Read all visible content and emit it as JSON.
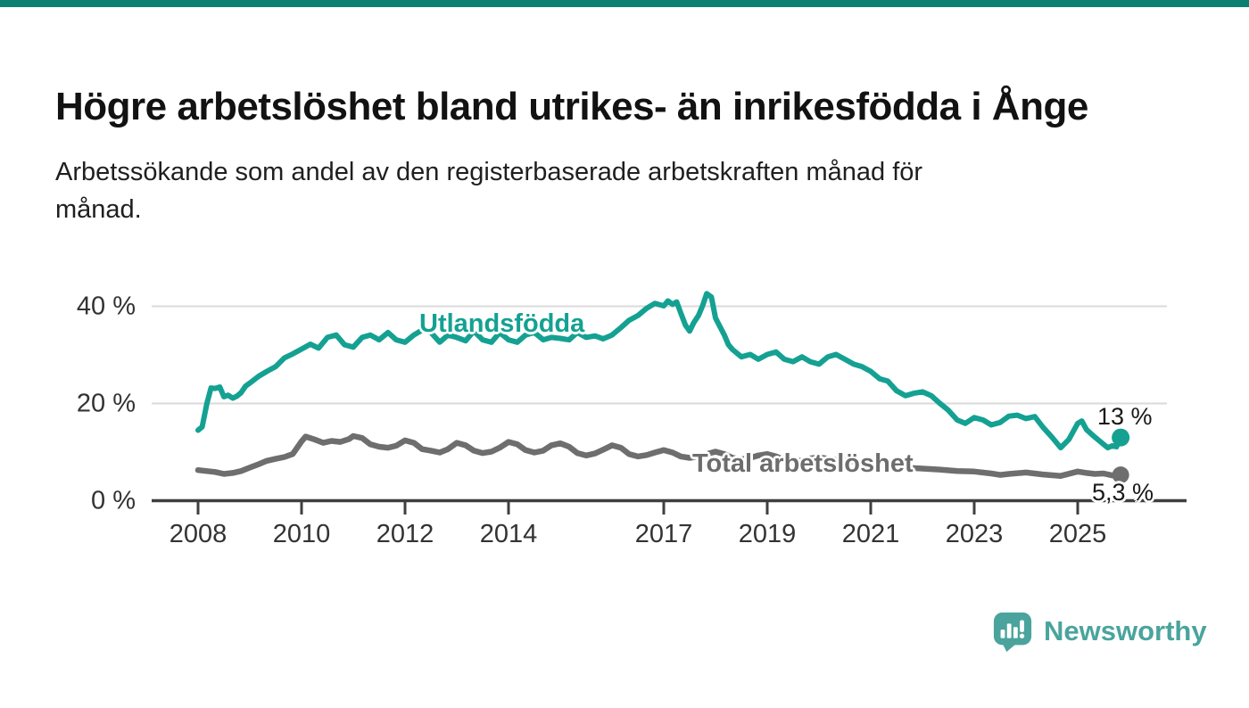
{
  "meta": {
    "top_bar_color": "#0b8071",
    "background_color": "#ffffff"
  },
  "header": {
    "title": "Högre arbetslöshet bland utrikes- än inrikesfödda i Ånge",
    "subtitle_line1": "Arbetssökande som andel av den registerbaserade arbetskraften månad för",
    "subtitle_line2": "månad."
  },
  "chart_data": {
    "type": "line",
    "title": "Högre arbetslöshet bland utrikes- än inrikesfödda i Ånge",
    "subtitle": "Arbetssökande som andel av den registerbaserade arbetskraften månad för månad.",
    "unit": "percent",
    "x_axis": {
      "range": [
        2008,
        2026
      ],
      "tick_years": [
        2008,
        2010,
        2012,
        2014,
        2017,
        2019,
        2021,
        2023,
        2025
      ]
    },
    "y_axis": {
      "range": [
        0,
        45
      ],
      "ticks": [
        {
          "value": 0,
          "label": "0 %"
        },
        {
          "value": 20,
          "label": "20 %"
        },
        {
          "value": 40,
          "label": "40 %"
        }
      ],
      "gridline_values": [
        20,
        40
      ]
    },
    "grid": "horizontal-only",
    "legend_position": "inline-labels-on-lines",
    "axis_color": "#3f3f3f",
    "gridline_color": "#dadada",
    "series": [
      {
        "name": "Utlandsfödda",
        "color": "#14a192",
        "end_label": "13 %",
        "end_value": 13,
        "points": [
          [
            2008.0,
            14.5
          ],
          [
            2008.08,
            15.2
          ],
          [
            2008.17,
            20.0
          ],
          [
            2008.25,
            23.2
          ],
          [
            2008.33,
            23.1
          ],
          [
            2008.42,
            23.4
          ],
          [
            2008.5,
            21.4
          ],
          [
            2008.58,
            21.7
          ],
          [
            2008.67,
            21.1
          ],
          [
            2008.75,
            21.5
          ],
          [
            2008.83,
            22.2
          ],
          [
            2008.92,
            23.6
          ],
          [
            2009.0,
            24.2
          ],
          [
            2009.17,
            25.6
          ],
          [
            2009.33,
            26.6
          ],
          [
            2009.5,
            27.6
          ],
          [
            2009.67,
            29.4
          ],
          [
            2009.83,
            30.2
          ],
          [
            2010.0,
            31.2
          ],
          [
            2010.17,
            32.2
          ],
          [
            2010.33,
            31.4
          ],
          [
            2010.5,
            33.6
          ],
          [
            2010.67,
            34.1
          ],
          [
            2010.83,
            32.1
          ],
          [
            2011.0,
            31.6
          ],
          [
            2011.17,
            33.6
          ],
          [
            2011.33,
            34.1
          ],
          [
            2011.5,
            33.1
          ],
          [
            2011.67,
            34.6
          ],
          [
            2011.83,
            33.1
          ],
          [
            2012.0,
            32.6
          ],
          [
            2012.17,
            34.1
          ],
          [
            2012.33,
            35.1
          ],
          [
            2012.5,
            34.6
          ],
          [
            2012.67,
            32.6
          ],
          [
            2012.83,
            34.1
          ],
          [
            2013.0,
            33.6
          ],
          [
            2013.17,
            32.9
          ],
          [
            2013.33,
            34.9
          ],
          [
            2013.5,
            33.1
          ],
          [
            2013.67,
            32.6
          ],
          [
            2013.83,
            34.6
          ],
          [
            2014.0,
            33.1
          ],
          [
            2014.17,
            32.6
          ],
          [
            2014.33,
            34.1
          ],
          [
            2014.5,
            34.6
          ],
          [
            2014.67,
            33.1
          ],
          [
            2014.83,
            33.6
          ],
          [
            2015.0,
            33.4
          ],
          [
            2015.17,
            33.1
          ],
          [
            2015.33,
            34.6
          ],
          [
            2015.5,
            33.6
          ],
          [
            2015.67,
            33.9
          ],
          [
            2015.83,
            33.3
          ],
          [
            2016.0,
            34.1
          ],
          [
            2016.17,
            35.6
          ],
          [
            2016.33,
            37.1
          ],
          [
            2016.5,
            38.1
          ],
          [
            2016.67,
            39.6
          ],
          [
            2016.83,
            40.6
          ],
          [
            2017.0,
            40.1
          ],
          [
            2017.08,
            41.1
          ],
          [
            2017.17,
            40.4
          ],
          [
            2017.25,
            40.9
          ],
          [
            2017.33,
            38.6
          ],
          [
            2017.42,
            36.1
          ],
          [
            2017.5,
            34.9
          ],
          [
            2017.58,
            36.6
          ],
          [
            2017.67,
            38.1
          ],
          [
            2017.75,
            40.1
          ],
          [
            2017.83,
            42.6
          ],
          [
            2017.92,
            41.9
          ],
          [
            2018.0,
            37.6
          ],
          [
            2018.17,
            34.1
          ],
          [
            2018.25,
            32.1
          ],
          [
            2018.33,
            31.1
          ],
          [
            2018.5,
            29.6
          ],
          [
            2018.67,
            30.1
          ],
          [
            2018.83,
            29.1
          ],
          [
            2019.0,
            30.1
          ],
          [
            2019.17,
            30.6
          ],
          [
            2019.33,
            29.1
          ],
          [
            2019.5,
            28.6
          ],
          [
            2019.67,
            29.6
          ],
          [
            2019.83,
            28.6
          ],
          [
            2020.0,
            28.1
          ],
          [
            2020.17,
            29.6
          ],
          [
            2020.33,
            30.1
          ],
          [
            2020.5,
            29.1
          ],
          [
            2020.67,
            28.1
          ],
          [
            2020.83,
            27.6
          ],
          [
            2021.0,
            26.6
          ],
          [
            2021.17,
            25.1
          ],
          [
            2021.33,
            24.6
          ],
          [
            2021.5,
            22.6
          ],
          [
            2021.67,
            21.6
          ],
          [
            2021.83,
            22.1
          ],
          [
            2022.0,
            22.4
          ],
          [
            2022.17,
            21.6
          ],
          [
            2022.33,
            20.1
          ],
          [
            2022.5,
            18.6
          ],
          [
            2022.67,
            16.6
          ],
          [
            2022.83,
            15.9
          ],
          [
            2023.0,
            17.1
          ],
          [
            2023.17,
            16.6
          ],
          [
            2023.33,
            15.6
          ],
          [
            2023.5,
            16.1
          ],
          [
            2023.67,
            17.4
          ],
          [
            2023.83,
            17.6
          ],
          [
            2024.0,
            16.9
          ],
          [
            2024.17,
            17.3
          ],
          [
            2024.33,
            15.1
          ],
          [
            2024.5,
            13.1
          ],
          [
            2024.67,
            10.9
          ],
          [
            2024.83,
            12.6
          ],
          [
            2025.0,
            15.9
          ],
          [
            2025.08,
            16.4
          ],
          [
            2025.17,
            14.6
          ],
          [
            2025.33,
            13.1
          ],
          [
            2025.5,
            11.6
          ],
          [
            2025.58,
            10.9
          ],
          [
            2025.67,
            11.3
          ],
          [
            2025.75,
            11.1
          ],
          [
            2025.83,
            13.0
          ]
        ]
      },
      {
        "name": "Total arbetslöshet",
        "color": "#6e6e6e",
        "end_label": "5,3 %",
        "end_value": 5.3,
        "points": [
          [
            2008.0,
            6.3
          ],
          [
            2008.17,
            6.1
          ],
          [
            2008.33,
            5.9
          ],
          [
            2008.5,
            5.5
          ],
          [
            2008.67,
            5.7
          ],
          [
            2008.83,
            6.1
          ],
          [
            2009.0,
            6.8
          ],
          [
            2009.17,
            7.5
          ],
          [
            2009.33,
            8.2
          ],
          [
            2009.5,
            8.6
          ],
          [
            2009.67,
            9.0
          ],
          [
            2009.83,
            9.6
          ],
          [
            2010.0,
            12.2
          ],
          [
            2010.08,
            13.2
          ],
          [
            2010.25,
            12.6
          ],
          [
            2010.42,
            11.9
          ],
          [
            2010.58,
            12.3
          ],
          [
            2010.75,
            12.1
          ],
          [
            2010.92,
            12.7
          ],
          [
            2011.0,
            13.3
          ],
          [
            2011.17,
            12.9
          ],
          [
            2011.33,
            11.6
          ],
          [
            2011.5,
            11.1
          ],
          [
            2011.67,
            10.9
          ],
          [
            2011.83,
            11.3
          ],
          [
            2012.0,
            12.4
          ],
          [
            2012.17,
            11.9
          ],
          [
            2012.33,
            10.6
          ],
          [
            2012.5,
            10.3
          ],
          [
            2012.67,
            9.9
          ],
          [
            2012.83,
            10.6
          ],
          [
            2013.0,
            11.9
          ],
          [
            2013.17,
            11.4
          ],
          [
            2013.33,
            10.3
          ],
          [
            2013.5,
            9.8
          ],
          [
            2013.67,
            10.1
          ],
          [
            2013.83,
            10.9
          ],
          [
            2014.0,
            12.1
          ],
          [
            2014.17,
            11.6
          ],
          [
            2014.33,
            10.4
          ],
          [
            2014.5,
            9.9
          ],
          [
            2014.67,
            10.3
          ],
          [
            2014.83,
            11.4
          ],
          [
            2015.0,
            11.8
          ],
          [
            2015.17,
            11.1
          ],
          [
            2015.33,
            9.8
          ],
          [
            2015.5,
            9.3
          ],
          [
            2015.67,
            9.7
          ],
          [
            2015.83,
            10.5
          ],
          [
            2016.0,
            11.4
          ],
          [
            2016.17,
            10.9
          ],
          [
            2016.33,
            9.6
          ],
          [
            2016.5,
            9.1
          ],
          [
            2016.67,
            9.4
          ],
          [
            2016.83,
            9.9
          ],
          [
            2017.0,
            10.4
          ],
          [
            2017.17,
            9.9
          ],
          [
            2017.33,
            9.1
          ],
          [
            2017.5,
            8.8
          ],
          [
            2017.67,
            9.1
          ],
          [
            2017.83,
            9.6
          ],
          [
            2018.0,
            10.1
          ],
          [
            2018.17,
            9.6
          ],
          [
            2018.33,
            8.8
          ],
          [
            2018.5,
            8.5
          ],
          [
            2018.67,
            8.8
          ],
          [
            2018.83,
            9.3
          ],
          [
            2019.0,
            9.6
          ],
          [
            2019.17,
            9.1
          ],
          [
            2019.33,
            8.4
          ],
          [
            2019.5,
            8.1
          ],
          [
            2019.67,
            8.3
          ],
          [
            2019.83,
            8.7
          ],
          [
            2020.0,
            8.9
          ],
          [
            2020.33,
            8.4
          ],
          [
            2020.67,
            8.1
          ],
          [
            2021.0,
            7.6
          ],
          [
            2021.33,
            7.1
          ],
          [
            2021.67,
            6.8
          ],
          [
            2022.0,
            6.6
          ],
          [
            2022.33,
            6.4
          ],
          [
            2022.67,
            6.1
          ],
          [
            2023.0,
            6.0
          ],
          [
            2023.33,
            5.6
          ],
          [
            2023.5,
            5.3
          ],
          [
            2023.67,
            5.5
          ],
          [
            2024.0,
            5.8
          ],
          [
            2024.33,
            5.4
          ],
          [
            2024.67,
            5.1
          ],
          [
            2025.0,
            6.0
          ],
          [
            2025.17,
            5.7
          ],
          [
            2025.33,
            5.5
          ],
          [
            2025.5,
            5.6
          ],
          [
            2025.67,
            5.2
          ],
          [
            2025.83,
            5.3
          ]
        ]
      }
    ]
  },
  "branding": {
    "logo_text": "Newsworthy",
    "logo_color": "#4aa49d",
    "logo_icon": "bar-chart-speech-bubble-icon"
  }
}
